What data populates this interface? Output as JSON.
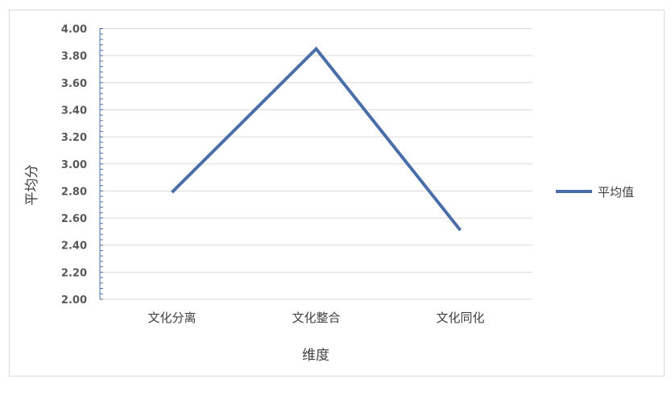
{
  "chart_data": {
    "type": "line",
    "title": "",
    "xlabel": "维度",
    "ylabel": "平均分",
    "categories": [
      "文化分离",
      "文化整合",
      "文化同化"
    ],
    "series": [
      {
        "name": "平均值",
        "values": [
          2.79,
          3.85,
          2.51
        ],
        "color": "#4a6ea9"
      }
    ],
    "ylim": [
      2.0,
      4.0
    ],
    "yticks": [
      "2.00",
      "2.20",
      "2.40",
      "2.60",
      "2.80",
      "3.00",
      "3.20",
      "3.40",
      "3.60",
      "3.80",
      "4.00"
    ],
    "grid": true,
    "legend": "right"
  }
}
